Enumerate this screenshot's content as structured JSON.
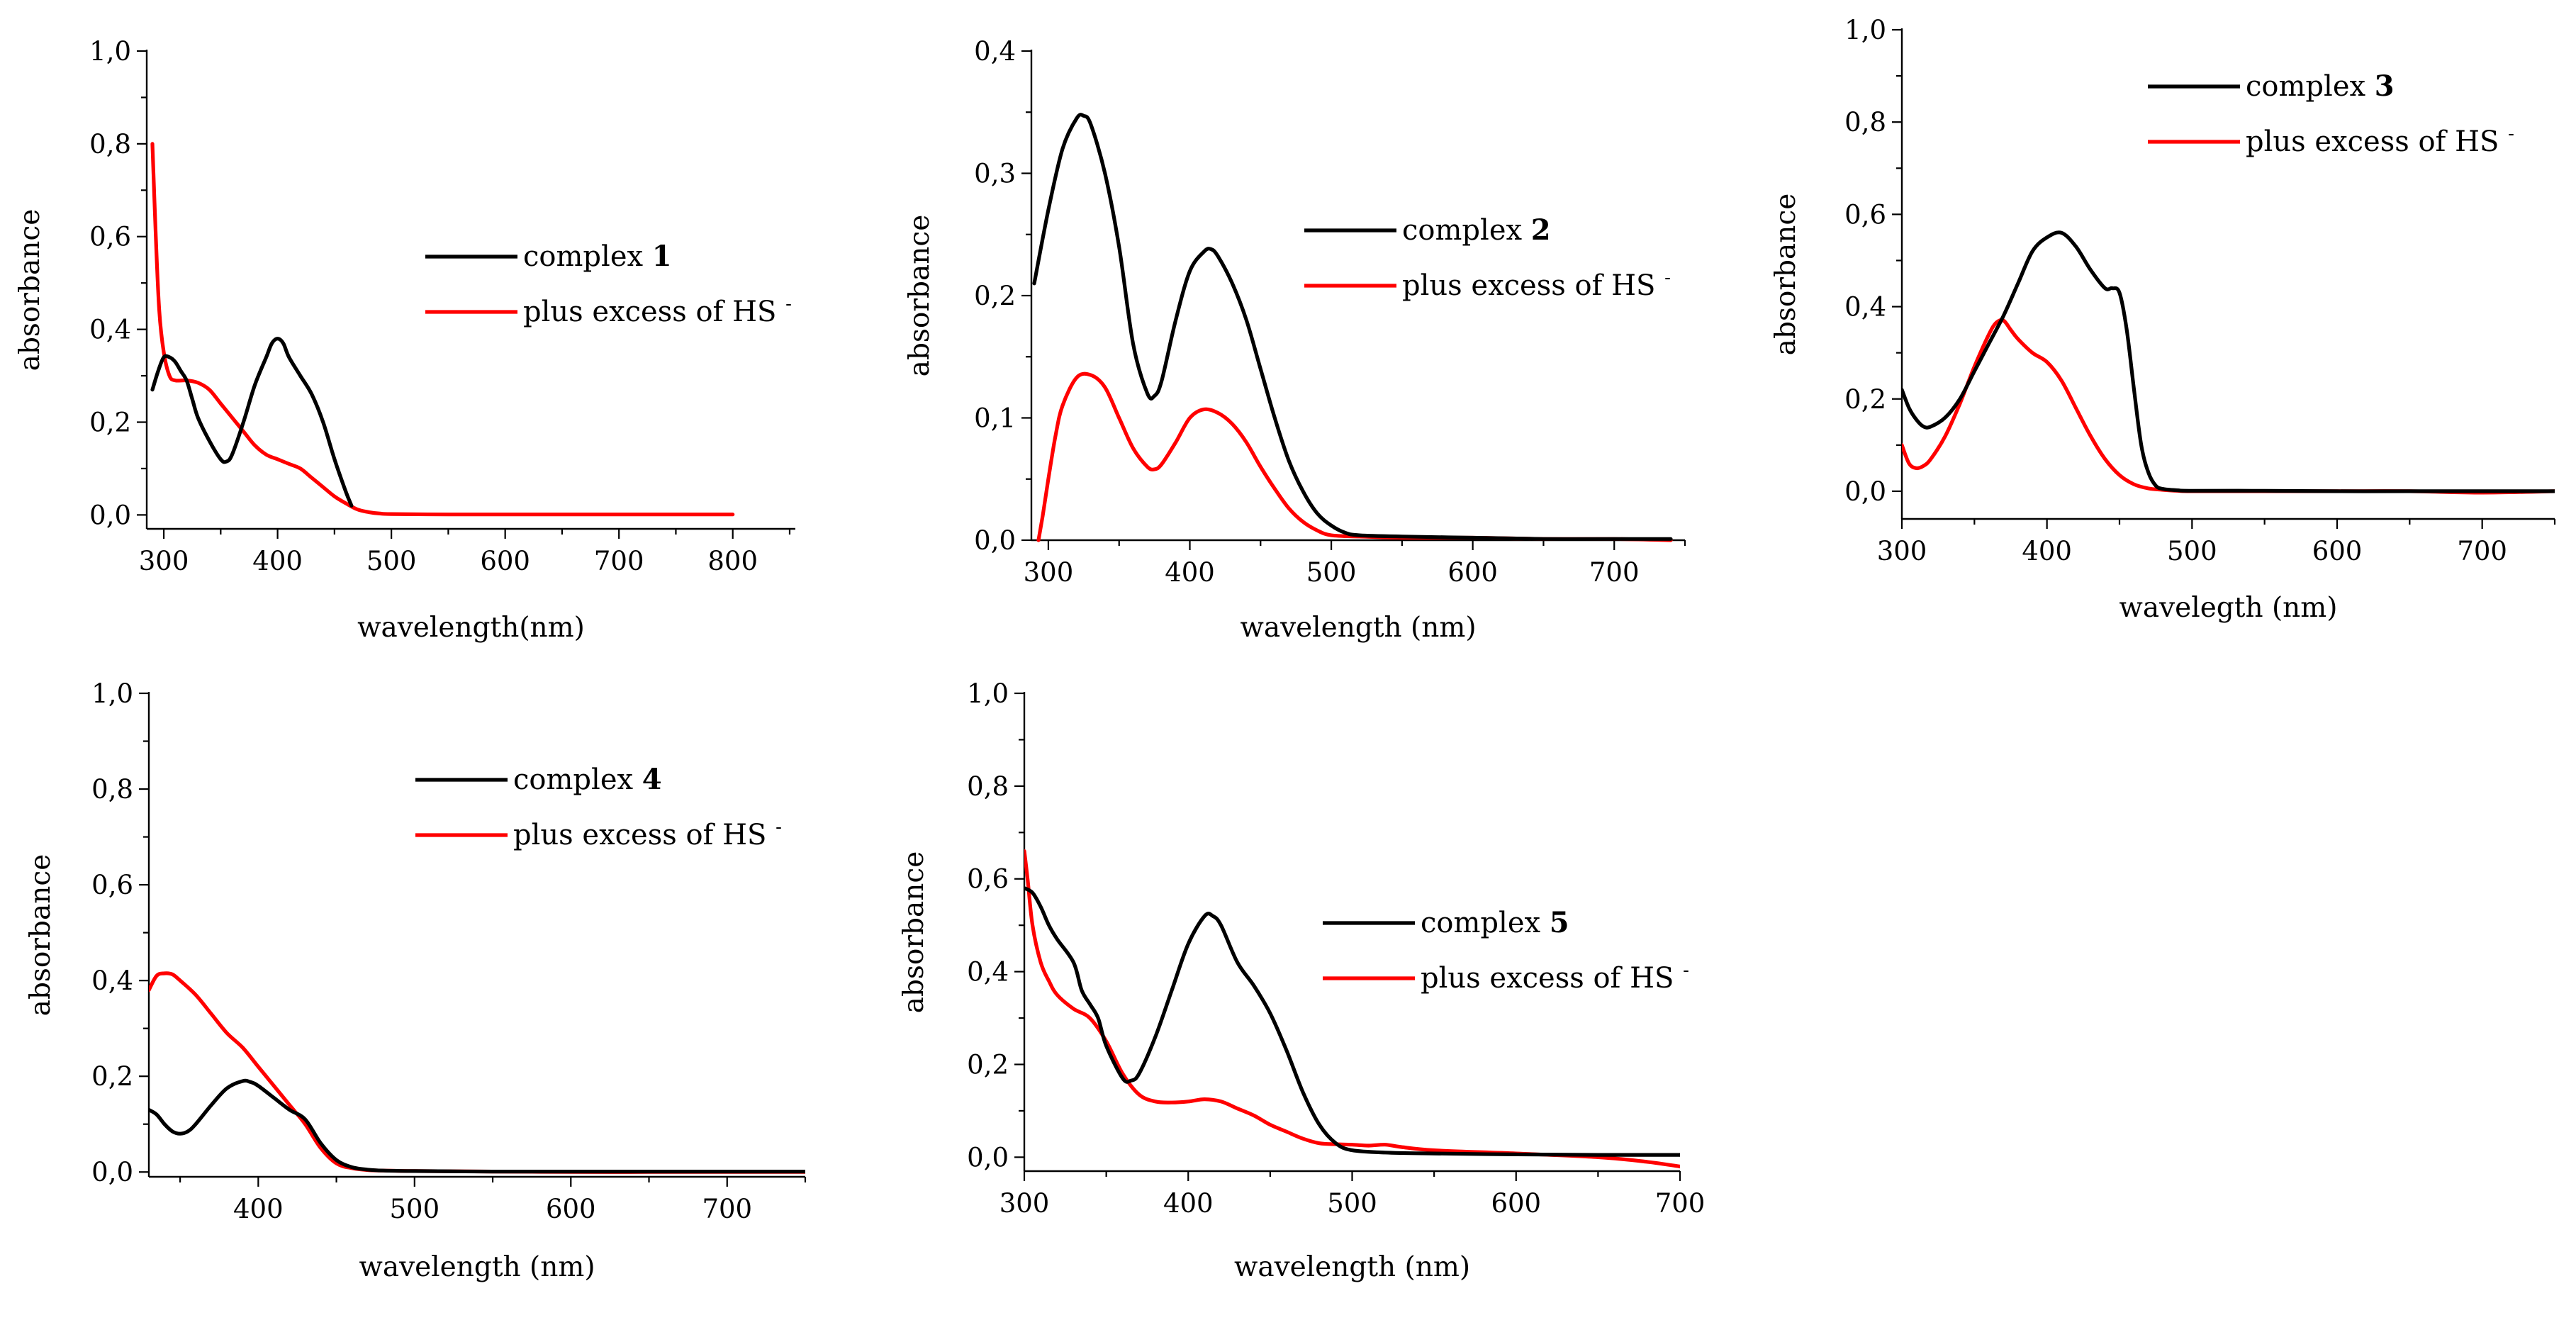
{
  "colors": {
    "black_series": "#000000",
    "red_series": "#ff0000"
  },
  "chart_data": [
    {
      "id": "panel-1",
      "type": "line",
      "xlabel": "wavelength(nm)",
      "ylabel": "absorbance",
      "xlim": [
        285,
        855
      ],
      "ylim": [
        -0.03,
        1.0
      ],
      "xticks": [
        300,
        400,
        500,
        600,
        700,
        800
      ],
      "yticks": [
        0.0,
        0.2,
        0.4,
        0.6,
        0.8,
        1.0
      ],
      "ytick_labels": [
        "0,0",
        "0,2",
        "0,4",
        "0,6",
        "0,8",
        "1,0"
      ],
      "legend_position": "right",
      "series": [
        {
          "name": "complex",
          "name_bold": "1",
          "color": "black",
          "x": [
            290,
            295,
            300,
            305,
            310,
            315,
            320,
            325,
            330,
            340,
            350,
            355,
            360,
            370,
            380,
            390,
            395,
            400,
            405,
            410,
            420,
            430,
            440,
            450,
            460,
            465
          ],
          "y": [
            0.27,
            0.31,
            0.34,
            0.34,
            0.33,
            0.31,
            0.29,
            0.25,
            0.21,
            0.16,
            0.12,
            0.115,
            0.13,
            0.2,
            0.28,
            0.34,
            0.37,
            0.38,
            0.37,
            0.34,
            0.3,
            0.26,
            0.2,
            0.12,
            0.05,
            0.02
          ]
        },
        {
          "name": "plus excess of HS",
          "superscript": "-",
          "color": "red",
          "x": [
            290,
            293,
            296,
            300,
            305,
            310,
            320,
            330,
            340,
            350,
            360,
            370,
            380,
            390,
            400,
            410,
            420,
            430,
            440,
            450,
            460,
            470,
            480,
            490,
            500,
            550,
            600,
            650,
            700,
            750,
            800
          ],
          "y": [
            0.8,
            0.6,
            0.44,
            0.35,
            0.3,
            0.29,
            0.29,
            0.285,
            0.27,
            0.24,
            0.21,
            0.18,
            0.15,
            0.13,
            0.12,
            0.11,
            0.1,
            0.08,
            0.06,
            0.04,
            0.025,
            0.012,
            0.006,
            0.003,
            0.002,
            0.001,
            0.001,
            0.001,
            0.001,
            0.001,
            0.001
          ]
        }
      ]
    },
    {
      "id": "panel-2",
      "type": "line",
      "xlabel": "wavelength (nm)",
      "ylabel": "absorbance",
      "xlim": [
        288,
        750
      ],
      "ylim": [
        0.0,
        0.4
      ],
      "xticks": [
        300,
        400,
        500,
        600,
        700
      ],
      "yticks": [
        0.0,
        0.1,
        0.2,
        0.3,
        0.4
      ],
      "ytick_labels": [
        "0,0",
        "0,1",
        "0,2",
        "0,3",
        "0,4"
      ],
      "legend_position": "right",
      "series": [
        {
          "name": "complex",
          "name_bold": "2",
          "color": "black",
          "x": [
            290,
            300,
            310,
            320,
            325,
            330,
            340,
            350,
            360,
            370,
            375,
            380,
            390,
            400,
            410,
            415,
            420,
            430,
            440,
            450,
            460,
            470,
            480,
            490,
            500,
            510,
            520,
            550,
            600,
            650,
            700,
            740
          ],
          "y": [
            0.21,
            0.27,
            0.32,
            0.345,
            0.347,
            0.34,
            0.3,
            0.24,
            0.16,
            0.12,
            0.118,
            0.13,
            0.18,
            0.22,
            0.236,
            0.238,
            0.232,
            0.21,
            0.18,
            0.14,
            0.1,
            0.065,
            0.04,
            0.022,
            0.012,
            0.006,
            0.004,
            0.003,
            0.002,
            0.001,
            0.001,
            0.001
          ]
        },
        {
          "name": "plus excess of HS",
          "superscript": "-",
          "color": "red",
          "x": [
            293,
            296,
            300,
            305,
            310,
            320,
            330,
            340,
            350,
            360,
            370,
            375,
            380,
            390,
            400,
            410,
            420,
            430,
            440,
            450,
            460,
            470,
            480,
            490,
            500,
            520,
            550,
            600,
            650,
            700,
            740
          ],
          "y": [
            0.0,
            0.02,
            0.05,
            0.085,
            0.11,
            0.133,
            0.135,
            0.125,
            0.1,
            0.075,
            0.06,
            0.058,
            0.062,
            0.08,
            0.1,
            0.107,
            0.104,
            0.095,
            0.08,
            0.06,
            0.042,
            0.026,
            0.015,
            0.008,
            0.004,
            0.003,
            0.002,
            0.002,
            0.001,
            0.001,
            0.0
          ]
        }
      ]
    },
    {
      "id": "panel-3",
      "type": "line",
      "xlabel": "wavelegth (nm)",
      "ylabel": "absorbance",
      "xlim": [
        300,
        750
      ],
      "ylim": [
        -0.06,
        1.0
      ],
      "xticks": [
        300,
        400,
        500,
        600,
        700
      ],
      "yticks": [
        0.0,
        0.2,
        0.4,
        0.6,
        0.8,
        1.0
      ],
      "ytick_labels": [
        "0,0",
        "0,2",
        "0,4",
        "0,6",
        "0,8",
        "1,0"
      ],
      "legend_position": "top-right",
      "series": [
        {
          "name": "complex",
          "name_bold": "3",
          "color": "black",
          "x": [
            300,
            305,
            310,
            315,
            320,
            330,
            340,
            350,
            360,
            370,
            380,
            390,
            400,
            410,
            420,
            430,
            440,
            445,
            450,
            455,
            460,
            465,
            470,
            475,
            480,
            490,
            500,
            550,
            600,
            650,
            700,
            750
          ],
          "y": [
            0.22,
            0.18,
            0.155,
            0.14,
            0.14,
            0.16,
            0.2,
            0.26,
            0.32,
            0.38,
            0.45,
            0.52,
            0.55,
            0.56,
            0.53,
            0.48,
            0.44,
            0.44,
            0.43,
            0.35,
            0.22,
            0.1,
            0.04,
            0.012,
            0.005,
            0.002,
            0.001,
            0.001,
            0.0,
            0.0,
            0.0,
            0.0
          ]
        },
        {
          "name": "plus excess of HS",
          "superscript": "-",
          "color": "red",
          "x": [
            300,
            305,
            310,
            315,
            320,
            330,
            340,
            350,
            360,
            365,
            370,
            375,
            380,
            390,
            400,
            410,
            420,
            430,
            440,
            450,
            460,
            470,
            480,
            490,
            500,
            550,
            600,
            650,
            700,
            750
          ],
          "y": [
            0.1,
            0.06,
            0.05,
            0.055,
            0.07,
            0.12,
            0.19,
            0.27,
            0.34,
            0.365,
            0.37,
            0.35,
            0.33,
            0.3,
            0.28,
            0.24,
            0.18,
            0.12,
            0.07,
            0.035,
            0.015,
            0.006,
            0.003,
            0.001,
            0.0,
            0.0,
            0.0,
            0.0,
            -0.003,
            0.0
          ]
        }
      ]
    },
    {
      "id": "panel-4",
      "type": "line",
      "xlabel": "wavelength (nm)",
      "ylabel": "absorbance",
      "xlim": [
        330,
        750
      ],
      "ylim": [
        -0.01,
        1.0
      ],
      "xticks": [
        400,
        500,
        600,
        700
      ],
      "yticks": [
        0.0,
        0.2,
        0.4,
        0.6,
        0.8,
        1.0
      ],
      "ytick_labels": [
        "0,0",
        "0,2",
        "0,4",
        "0,6",
        "0,8",
        "1,0"
      ],
      "legend_position": "top-right",
      "series": [
        {
          "name": "complex",
          "name_bold": "4",
          "color": "black",
          "x": [
            330,
            335,
            340,
            345,
            350,
            355,
            360,
            370,
            380,
            390,
            395,
            400,
            410,
            420,
            430,
            440,
            450,
            460,
            470,
            480,
            500,
            550,
            600,
            650,
            700,
            750
          ],
          "y": [
            0.13,
            0.12,
            0.1,
            0.085,
            0.08,
            0.085,
            0.1,
            0.14,
            0.175,
            0.19,
            0.188,
            0.18,
            0.155,
            0.13,
            0.11,
            0.06,
            0.025,
            0.01,
            0.005,
            0.003,
            0.002,
            0.001,
            0.001,
            0.001,
            0.001,
            0.001
          ]
        },
        {
          "name": "plus excess of HS",
          "superscript": "-",
          "color": "red",
          "x": [
            330,
            335,
            340,
            345,
            350,
            360,
            370,
            380,
            390,
            400,
            410,
            420,
            430,
            440,
            450,
            460,
            470,
            480,
            500,
            550,
            600,
            650,
            700,
            750
          ],
          "y": [
            0.38,
            0.41,
            0.415,
            0.413,
            0.4,
            0.37,
            0.33,
            0.29,
            0.26,
            0.22,
            0.18,
            0.14,
            0.1,
            0.05,
            0.018,
            0.008,
            0.004,
            0.003,
            0.002,
            0.001,
            0.0,
            0.0,
            0.0,
            0.0
          ]
        }
      ]
    },
    {
      "id": "panel-5",
      "type": "line",
      "xlabel": "wavelength (nm)",
      "ylabel": "absorbance",
      "xlim": [
        300,
        700
      ],
      "ylim": [
        -0.03,
        1.0
      ],
      "xticks": [
        300,
        400,
        500,
        600,
        700
      ],
      "yticks": [
        0.0,
        0.2,
        0.4,
        0.6,
        0.8,
        1.0
      ],
      "ytick_labels": [
        "0,0",
        "0,2",
        "0,4",
        "0,6",
        "0,8",
        "1,0"
      ],
      "legend_position": "right",
      "series": [
        {
          "name": "complex",
          "name_bold": "5",
          "color": "black",
          "x": [
            300,
            305,
            310,
            315,
            320,
            330,
            335,
            340,
            345,
            350,
            360,
            365,
            370,
            380,
            390,
            400,
            410,
            415,
            420,
            430,
            440,
            450,
            460,
            470,
            480,
            490,
            500,
            520,
            550,
            600,
            650,
            700
          ],
          "y": [
            0.58,
            0.57,
            0.54,
            0.5,
            0.47,
            0.42,
            0.36,
            0.33,
            0.3,
            0.24,
            0.17,
            0.165,
            0.18,
            0.26,
            0.36,
            0.46,
            0.52,
            0.52,
            0.5,
            0.42,
            0.37,
            0.31,
            0.23,
            0.14,
            0.07,
            0.03,
            0.015,
            0.01,
            0.008,
            0.006,
            0.005,
            0.005
          ]
        },
        {
          "name": "plus excess of HS",
          "superscript": "-",
          "color": "red",
          "x": [
            300,
            302,
            305,
            310,
            315,
            320,
            330,
            340,
            350,
            360,
            370,
            380,
            390,
            400,
            410,
            420,
            430,
            440,
            450,
            460,
            470,
            480,
            490,
            500,
            510,
            520,
            530,
            550,
            600,
            650,
            680,
            700
          ],
          "y": [
            0.66,
            0.6,
            0.5,
            0.42,
            0.38,
            0.35,
            0.32,
            0.3,
            0.25,
            0.18,
            0.135,
            0.12,
            0.118,
            0.12,
            0.125,
            0.12,
            0.105,
            0.09,
            0.07,
            0.055,
            0.04,
            0.03,
            0.028,
            0.027,
            0.025,
            0.027,
            0.022,
            0.015,
            0.008,
            0.0,
            -0.01,
            -0.02
          ]
        }
      ]
    }
  ]
}
